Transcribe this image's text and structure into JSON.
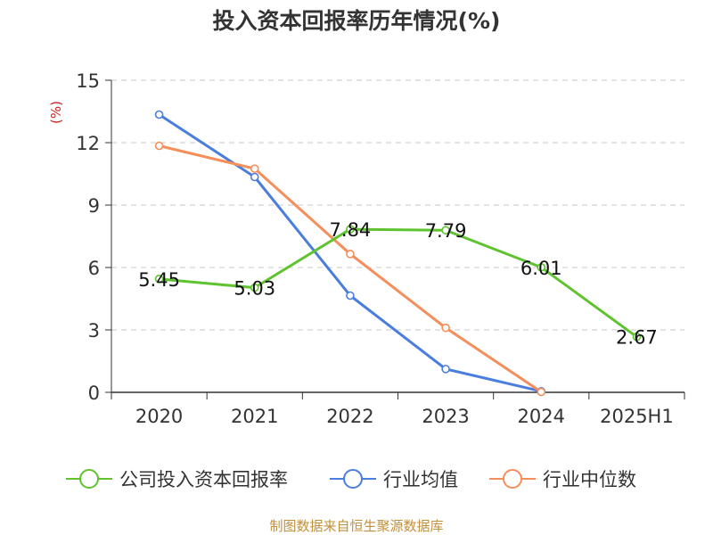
{
  "title": "投入资本回报率历年情况(%)",
  "footer": "制图数据来自恒生聚源数据库",
  "chart_data": {
    "type": "line",
    "title": "投入资本回报率历年情况(%)",
    "ylabel": "(%)",
    "xlabel": "",
    "categories": [
      "2020",
      "2021",
      "2022",
      "2023",
      "2024",
      "2025H1"
    ],
    "ylim": [
      0,
      15
    ],
    "yticks": [
      0,
      3,
      6,
      9,
      12,
      15
    ],
    "grid": true,
    "legend_position": "bottom",
    "series": [
      {
        "name": "公司投入资本回报率",
        "color": "#5fc22f",
        "values": [
          5.45,
          5.03,
          7.84,
          7.79,
          6.01,
          2.67
        ],
        "labels": [
          "5.45",
          "5.03",
          "7.84",
          "7.79",
          "6.01",
          "2.67"
        ]
      },
      {
        "name": "行业均值",
        "color": "#4a7ede",
        "values": [
          13.35,
          10.35,
          4.65,
          1.12,
          0.05,
          null
        ]
      },
      {
        "name": "行业中位数",
        "color": "#f58e5a",
        "values": [
          11.85,
          10.75,
          6.65,
          3.1,
          0.02,
          null
        ]
      }
    ]
  }
}
